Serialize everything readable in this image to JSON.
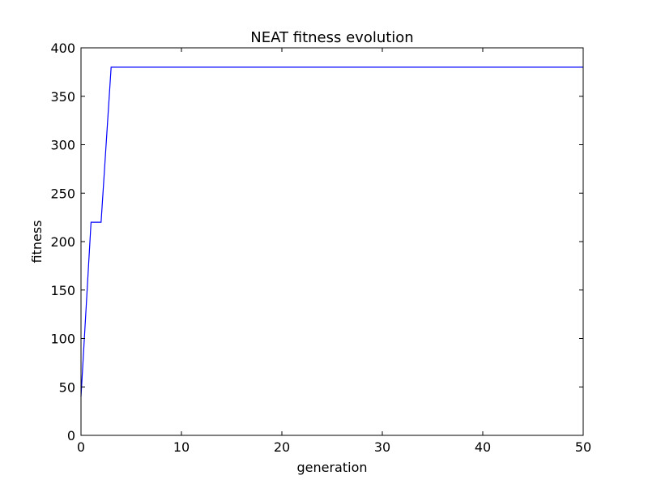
{
  "chart_data": {
    "type": "line",
    "title": "NEAT fitness evolution",
    "xlabel": "generation",
    "ylabel": "fitness",
    "xlim": [
      0,
      50
    ],
    "ylim": [
      0,
      400
    ],
    "x_ticks": [
      0,
      10,
      20,
      30,
      40,
      50
    ],
    "y_ticks": [
      0,
      50,
      100,
      150,
      200,
      250,
      300,
      350,
      400
    ],
    "grid": false,
    "legend": "none",
    "series": [
      {
        "color": "#0000ff",
        "x": [
          0,
          1,
          2,
          3,
          50
        ],
        "y": [
          40,
          220,
          220,
          380,
          380
        ]
      }
    ]
  }
}
